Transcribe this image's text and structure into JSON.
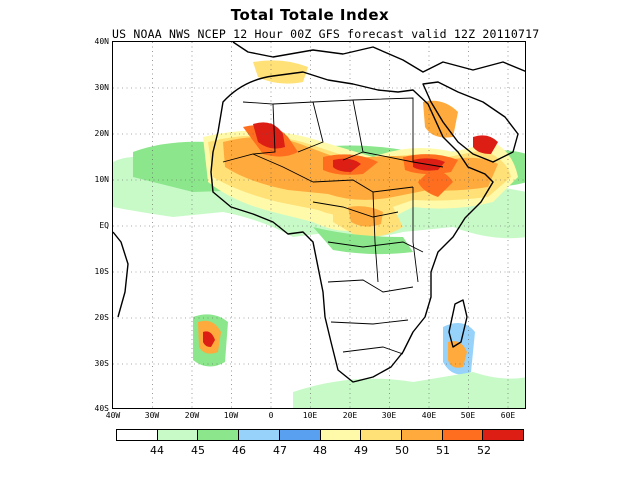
{
  "header": {
    "title": "Total Totale Index",
    "subtitle": "US NOAA NWS NCEP 12 Hour 00Z GFS forecast valid 12Z 20110717"
  },
  "map": {
    "projection": "lat-lon",
    "lon_range": [
      -40,
      65
    ],
    "lat_range": [
      -40,
      40
    ],
    "lat_labels": [
      "40N",
      "30N",
      "20N",
      "10N",
      "EQ",
      "10S",
      "20S",
      "30S",
      "40S"
    ],
    "lon_labels": [
      "40W",
      "30W",
      "20W",
      "10W",
      "0",
      "10E",
      "20E",
      "30E",
      "40E",
      "50E",
      "60E"
    ],
    "grid": "dotted"
  },
  "colorbar": {
    "levels": [
      "44",
      "45",
      "46",
      "47",
      "48",
      "49",
      "50",
      "51",
      "52"
    ],
    "colors": [
      "#ffffff",
      "#c8fac8",
      "#8ce68c",
      "#96d2fa",
      "#5aa0f0",
      "#fffaaa",
      "#ffe178",
      "#ffaa3c",
      "#ff6e1e",
      "#dc1e14"
    ]
  }
}
